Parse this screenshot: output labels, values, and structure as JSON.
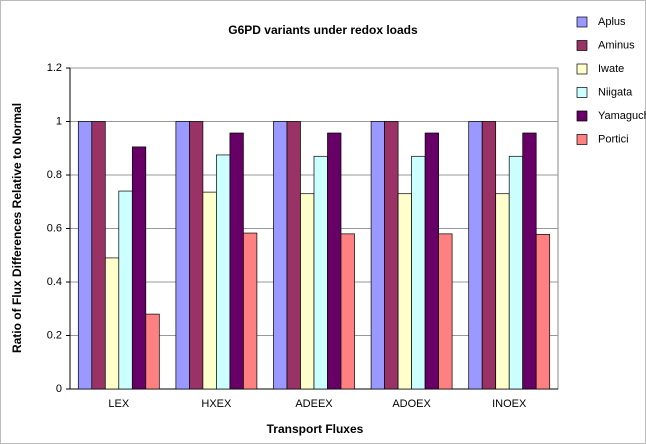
{
  "chart_data": {
    "type": "bar",
    "title": "G6PD variants under redox loads",
    "x_label": "Transport Fluxes",
    "y_label": "Ratio of Flux Differences Relative to Normal",
    "categories": [
      "LEX",
      "HXEX",
      "ADEEX",
      "ADOEX",
      "INOEX"
    ],
    "series": [
      {
        "name": "Aplus",
        "color": "#9999ff",
        "values": [
          1,
          1,
          1,
          1,
          1
        ]
      },
      {
        "name": "Aminus",
        "color": "#993366",
        "values": [
          1,
          1,
          1,
          1,
          1
        ]
      },
      {
        "name": "Iwate",
        "color": "#ffffcc",
        "values": [
          0.49,
          0.736,
          0.73,
          0.73,
          0.73
        ]
      },
      {
        "name": "Niigata",
        "color": "#ccffff",
        "values": [
          0.74,
          0.875,
          0.87,
          0.87,
          0.87
        ]
      },
      {
        "name": "Yamaguchi",
        "color": "#660066",
        "values": [
          0.905,
          0.957,
          0.957,
          0.957,
          0.957
        ]
      },
      {
        "name": "Portici",
        "color": "#ff8080",
        "values": [
          0.28,
          0.583,
          0.58,
          0.58,
          0.578
        ]
      }
    ],
    "ylim": [
      0,
      1.2
    ],
    "yticks": [
      0,
      0.2,
      0.4,
      0.6,
      0.8,
      1,
      1.2
    ],
    "grid": true,
    "legend": "right"
  }
}
